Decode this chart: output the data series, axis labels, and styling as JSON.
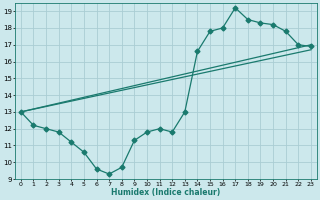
{
  "xlabel": "Humidex (Indice chaleur)",
  "xlim": [
    -0.5,
    23.5
  ],
  "ylim": [
    9,
    19.5
  ],
  "xticks": [
    0,
    1,
    2,
    3,
    4,
    5,
    6,
    7,
    8,
    9,
    10,
    11,
    12,
    13,
    14,
    15,
    16,
    17,
    18,
    19,
    20,
    21,
    22,
    23
  ],
  "yticks": [
    9,
    10,
    11,
    12,
    13,
    14,
    15,
    16,
    17,
    18,
    19
  ],
  "bg_color": "#cce8ec",
  "grid_color": "#aacdd4",
  "line_color": "#1a7a6e",
  "series1_x": [
    0,
    1,
    2,
    3,
    4,
    5,
    6,
    7,
    8,
    9,
    10,
    11,
    12,
    13,
    14,
    15,
    16,
    17,
    18,
    19,
    20,
    21,
    22,
    23
  ],
  "series1_y": [
    13.0,
    12.2,
    12.0,
    11.8,
    11.2,
    10.6,
    9.6,
    9.3,
    9.7,
    11.3,
    11.8,
    12.0,
    11.8,
    13.0,
    16.6,
    17.8,
    18.0,
    19.2,
    18.5,
    18.3,
    18.2,
    17.8,
    17.0,
    16.9
  ],
  "series2_x": [
    0,
    23
  ],
  "series2_y": [
    13.0,
    16.7
  ],
  "series3_x": [
    0,
    23
  ],
  "series3_y": [
    13.0,
    17.0
  ]
}
